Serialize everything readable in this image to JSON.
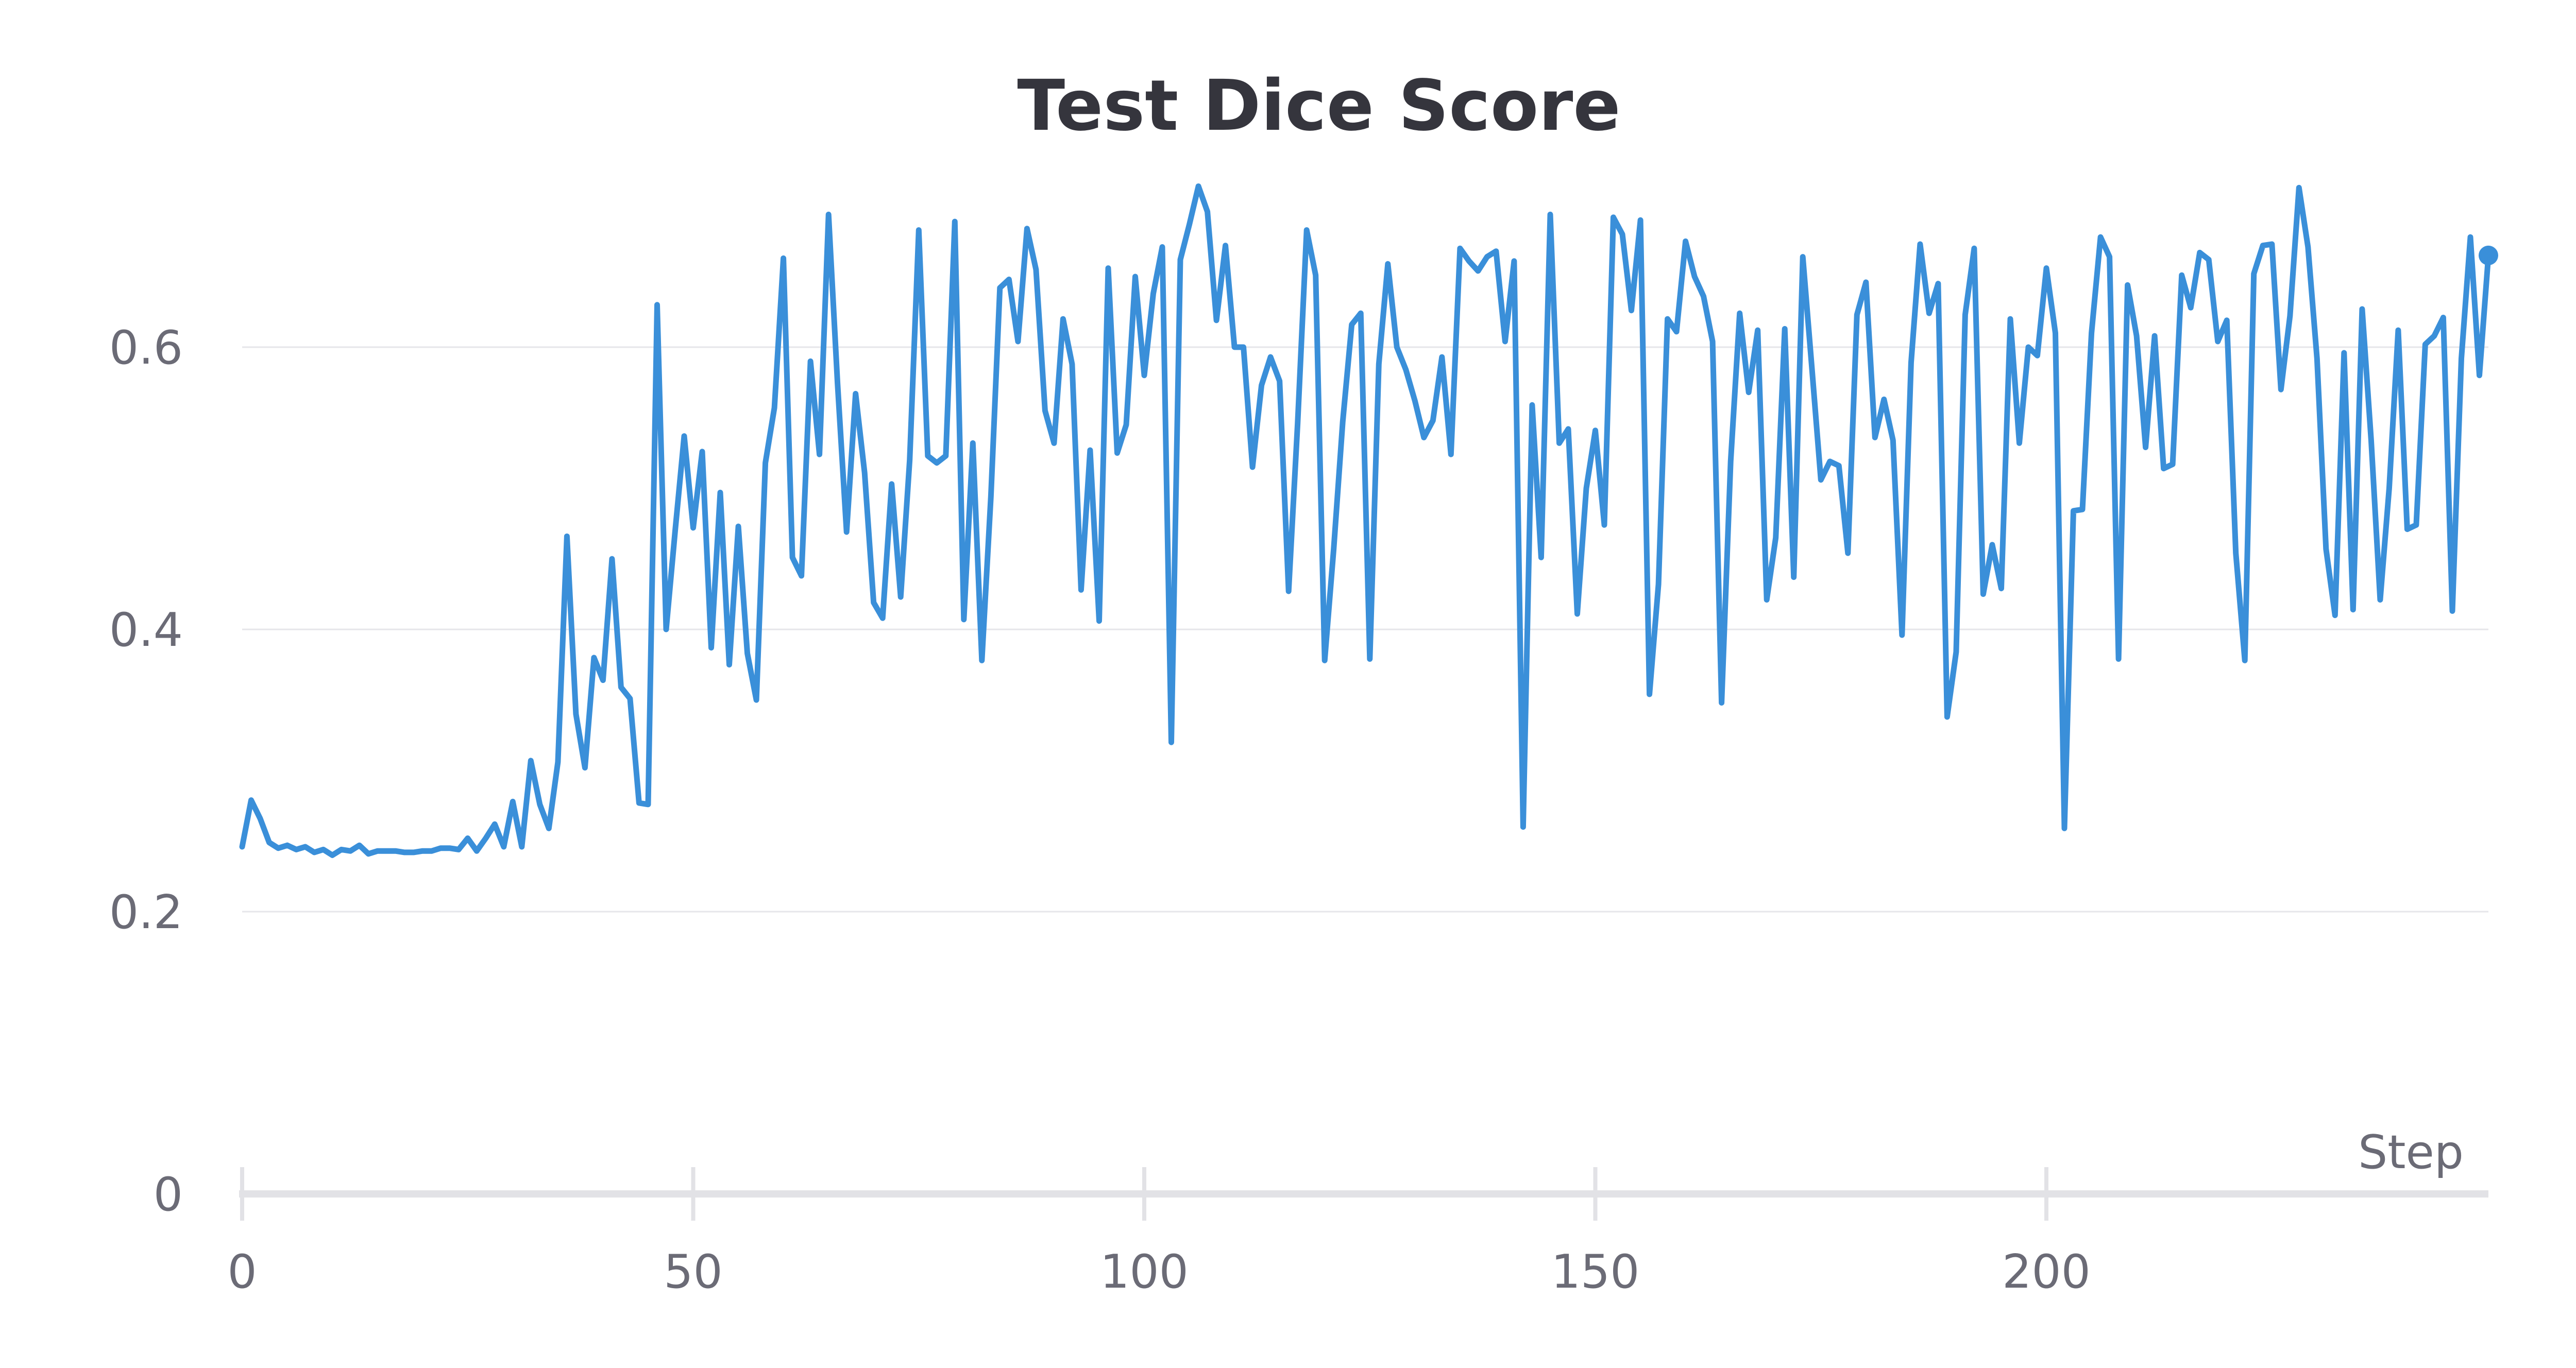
{
  "chart_data": {
    "type": "line",
    "title": "Test Dice Score",
    "xlabel": "Step",
    "ylabel": "",
    "xlim": [
      0,
      249
    ],
    "ylim": [
      0,
      0.72
    ],
    "xticks": [
      0,
      50,
      100,
      150,
      200
    ],
    "yticks": [
      0,
      0.2,
      0.4,
      0.6
    ],
    "grid": true,
    "series": [
      {
        "color": "#3a8fd9",
        "values": [
          0.246,
          0.279,
          0.266,
          0.249,
          0.245,
          0.247,
          0.244,
          0.246,
          0.242,
          0.244,
          0.24,
          0.244,
          0.243,
          0.247,
          0.241,
          0.243,
          0.243,
          0.243,
          0.242,
          0.242,
          0.243,
          0.243,
          0.245,
          0.245,
          0.244,
          0.252,
          0.243,
          0.252,
          0.262,
          0.246,
          0.278,
          0.246,
          0.307,
          0.276,
          0.259,
          0.306,
          0.466,
          0.34,
          0.302,
          0.38,
          0.364,
          0.45,
          0.359,
          0.351,
          0.277,
          0.276,
          0.63,
          0.4,
          0.47,
          0.537,
          0.472,
          0.526,
          0.387,
          0.497,
          0.375,
          0.473,
          0.383,
          0.35,
          0.518,
          0.557,
          0.663,
          0.451,
          0.438,
          0.59,
          0.524,
          0.694,
          0.574,
          0.469,
          0.567,
          0.511,
          0.419,
          0.408,
          0.503,
          0.423,
          0.52,
          0.683,
          0.523,
          0.518,
          0.523,
          0.689,
          0.407,
          0.532,
          0.378,
          0.494,
          0.642,
          0.648,
          0.604,
          0.684,
          0.655,
          0.555,
          0.532,
          0.62,
          0.588,
          0.428,
          0.527,
          0.406,
          0.656,
          0.525,
          0.545,
          0.65,
          0.58,
          0.638,
          0.671,
          0.32,
          0.662,
          0.687,
          0.714,
          0.696,
          0.619,
          0.672,
          0.6,
          0.6,
          0.515,
          0.573,
          0.593,
          0.576,
          0.427,
          0.546,
          0.683,
          0.651,
          0.378,
          0.457,
          0.547,
          0.616,
          0.624,
          0.379,
          0.588,
          0.659,
          0.6,
          0.584,
          0.562,
          0.536,
          0.548,
          0.593,
          0.524,
          0.67,
          0.661,
          0.654,
          0.664,
          0.668,
          0.604,
          0.661,
          0.26,
          0.559,
          0.451,
          0.694,
          0.532,
          0.542,
          0.411,
          0.5,
          0.541,
          0.474,
          0.692,
          0.68,
          0.626,
          0.69,
          0.354,
          0.432,
          0.62,
          0.611,
          0.675,
          0.65,
          0.636,
          0.604,
          0.348,
          0.519,
          0.624,
          0.568,
          0.612,
          0.421,
          0.465,
          0.613,
          0.437,
          0.664,
          0.586,
          0.506,
          0.519,
          0.516,
          0.454,
          0.623,
          0.646,
          0.536,
          0.563,
          0.534,
          0.396,
          0.589,
          0.673,
          0.624,
          0.645,
          0.338,
          0.384,
          0.623,
          0.67,
          0.425,
          0.46,
          0.429,
          0.62,
          0.532,
          0.6,
          0.594,
          0.656,
          0.61,
          0.259,
          0.484,
          0.485,
          0.61,
          0.678,
          0.664,
          0.379,
          0.644,
          0.608,
          0.529,
          0.608,
          0.514,
          0.517,
          0.651,
          0.628,
          0.667,
          0.662,
          0.604,
          0.619,
          0.454,
          0.378,
          0.652,
          0.672,
          0.673,
          0.57,
          0.622,
          0.713,
          0.671,
          0.592,
          0.457,
          0.41,
          0.596,
          0.414,
          0.627,
          0.534,
          0.421,
          0.5,
          0.612,
          0.471,
          0.474,
          0.602,
          0.608,
          0.621,
          0.413,
          0.592,
          0.678,
          0.58,
          0.665
        ]
      }
    ]
  }
}
